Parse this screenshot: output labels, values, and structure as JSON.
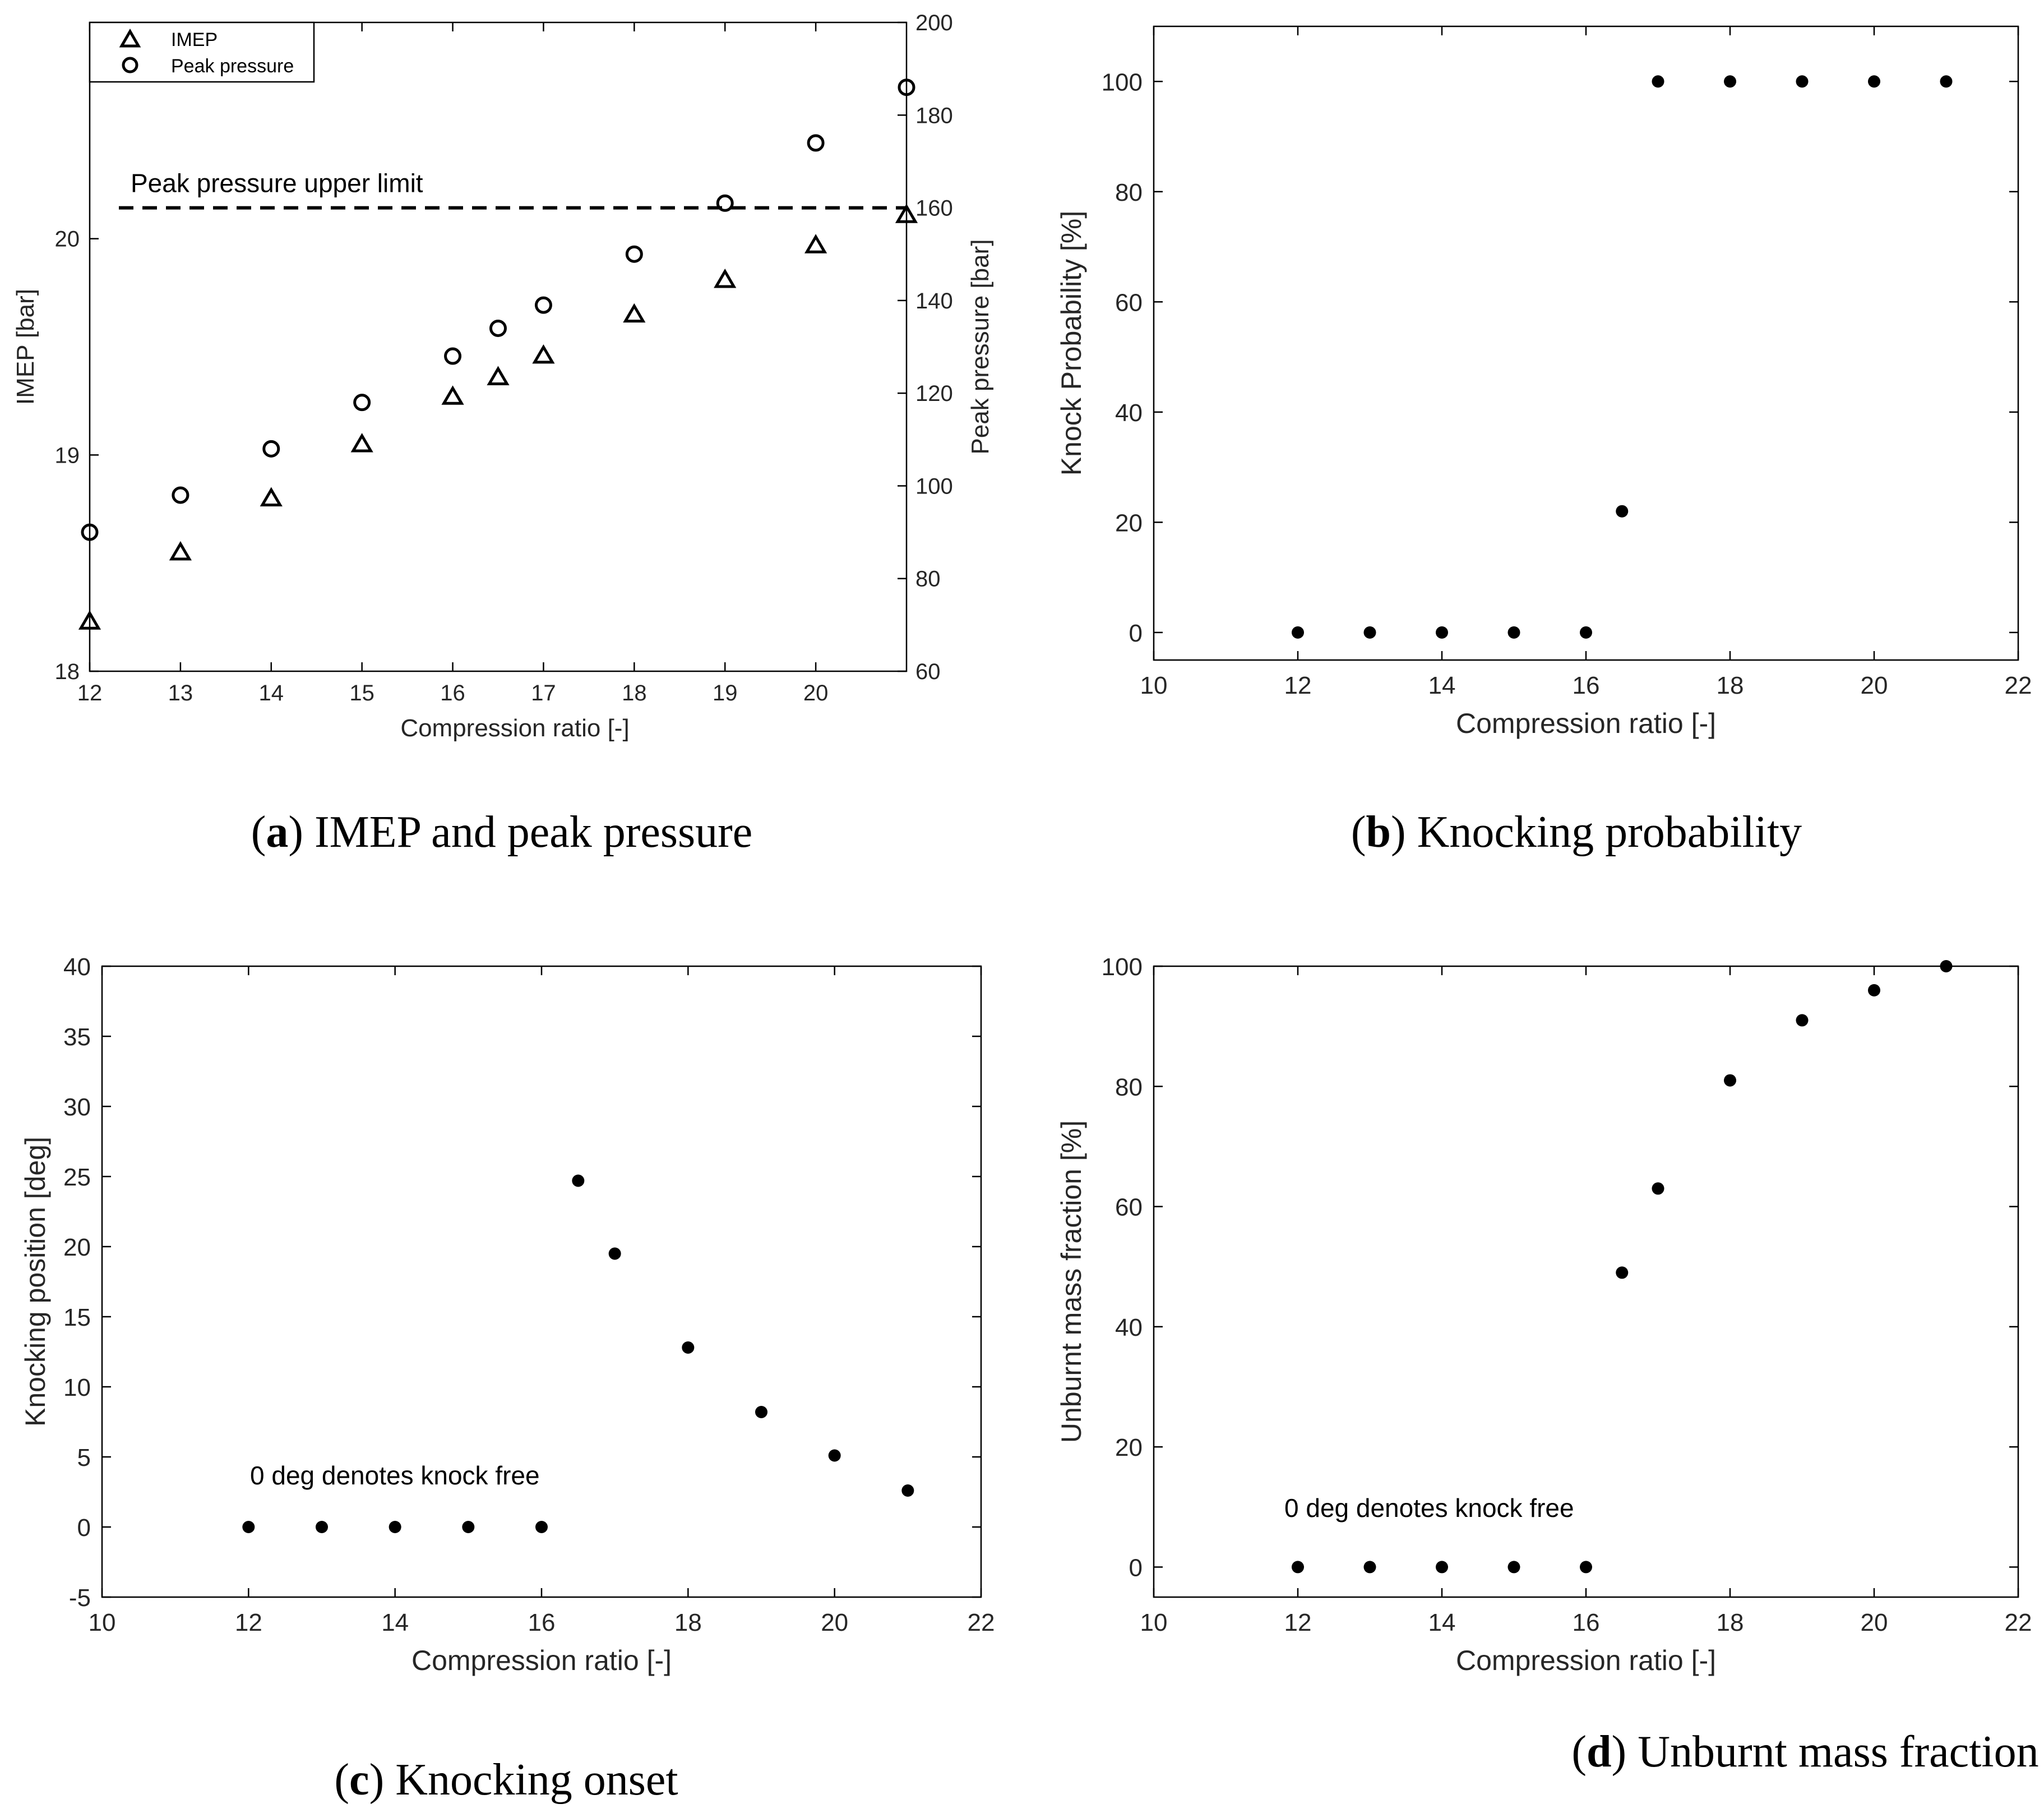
{
  "chart_data": [
    {
      "id": "a",
      "type": "scatter",
      "xlabel": "Compression ratio [-]",
      "ylabel_left": "IMEP [bar]",
      "ylabel_right": "Peak pressure [bar]",
      "xlim": [
        12,
        21
      ],
      "xticks": [
        "12",
        "13",
        "14",
        "15",
        "16",
        "17",
        "18",
        "19",
        "20"
      ],
      "ylim_left": [
        18,
        21
      ],
      "yticks_left": [
        "18",
        "19",
        "20"
      ],
      "ylim_right": [
        60,
        200
      ],
      "yticks_right": [
        "60",
        "80",
        "100",
        "120",
        "140",
        "160",
        "180",
        "200"
      ],
      "series": [
        {
          "name": "IMEP",
          "marker": "triangle",
          "axis": "left",
          "x": [
            12,
            13,
            14,
            15,
            16,
            16.5,
            17,
            18,
            19,
            20,
            21
          ],
          "y": [
            18.23,
            18.55,
            18.8,
            19.05,
            19.27,
            19.36,
            19.46,
            19.65,
            19.81,
            19.97,
            20.11
          ]
        },
        {
          "name": "Peak pressure",
          "marker": "circle",
          "axis": "right",
          "x": [
            12,
            13,
            14,
            15,
            16,
            16.5,
            17,
            18,
            19,
            20,
            21
          ],
          "y": [
            90,
            98,
            108,
            118,
            128,
            134,
            139,
            150,
            161,
            174,
            186
          ]
        }
      ],
      "reference_line": {
        "label": "Peak pressure upper limit",
        "axis": "right",
        "y": 160
      },
      "legend": {
        "position": "top-left",
        "entries": [
          "IMEP",
          "Peak pressure"
        ]
      },
      "caption": {
        "letter": "a",
        "text": " IMEP and peak pressure"
      }
    },
    {
      "id": "b",
      "type": "scatter",
      "xlabel": "Compression ratio [-]",
      "ylabel": "Knock Probability [%]",
      "xlim": [
        10,
        22
      ],
      "xticks": [
        "10",
        "12",
        "14",
        "16",
        "18",
        "20",
        "22"
      ],
      "ylim": [
        -5,
        110
      ],
      "yticks": [
        "0",
        "20",
        "40",
        "60",
        "80",
        "100"
      ],
      "series": [
        {
          "name": "Knock probability",
          "x": [
            12,
            13,
            14,
            15,
            16,
            16.5,
            17,
            18,
            19,
            20,
            21
          ],
          "y": [
            0,
            0,
            0,
            0,
            0,
            22,
            100,
            100,
            100,
            100,
            100
          ]
        }
      ],
      "caption": {
        "letter": "b",
        "text": " Knocking probability"
      }
    },
    {
      "id": "c",
      "type": "scatter",
      "xlabel": "Compression ratio [-]",
      "ylabel": "Knocking position [deg]",
      "xlim": [
        10,
        22
      ],
      "xticks": [
        "10",
        "12",
        "14",
        "16",
        "18",
        "20",
        "22"
      ],
      "ylim": [
        -5,
        40
      ],
      "yticks": [
        "-5",
        "0",
        "5",
        "10",
        "15",
        "20",
        "25",
        "30",
        "35",
        "40"
      ],
      "annotation": "0 deg denotes knock free",
      "series": [
        {
          "name": "Knocking position",
          "x": [
            12,
            13,
            14,
            15,
            16,
            16.5,
            17,
            18,
            19,
            20,
            21
          ],
          "y": [
            0,
            0,
            0,
            0,
            0,
            24.7,
            19.5,
            12.8,
            8.2,
            5.1,
            2.6
          ]
        }
      ],
      "caption": {
        "letter": "c",
        "text": " Knocking onset"
      }
    },
    {
      "id": "d",
      "type": "scatter",
      "xlabel": "Compression ratio [-]",
      "ylabel": "Unburnt mass fraction [%]",
      "xlim": [
        10,
        22
      ],
      "xticks": [
        "10",
        "12",
        "14",
        "16",
        "18",
        "20",
        "22"
      ],
      "ylim": [
        -5,
        100
      ],
      "yticks": [
        "0",
        "20",
        "40",
        "60",
        "80",
        "100"
      ],
      "annotation": "0 deg denotes knock free",
      "series": [
        {
          "name": "Unburnt mass fraction",
          "x": [
            12,
            13,
            14,
            15,
            16,
            16.5,
            17,
            18,
            19,
            20,
            21
          ],
          "y": [
            0,
            0,
            0,
            0,
            0,
            49,
            63,
            81,
            91,
            96,
            100
          ]
        }
      ],
      "caption": {
        "letter": "d",
        "text": " Unburnt mass fraction"
      }
    }
  ]
}
